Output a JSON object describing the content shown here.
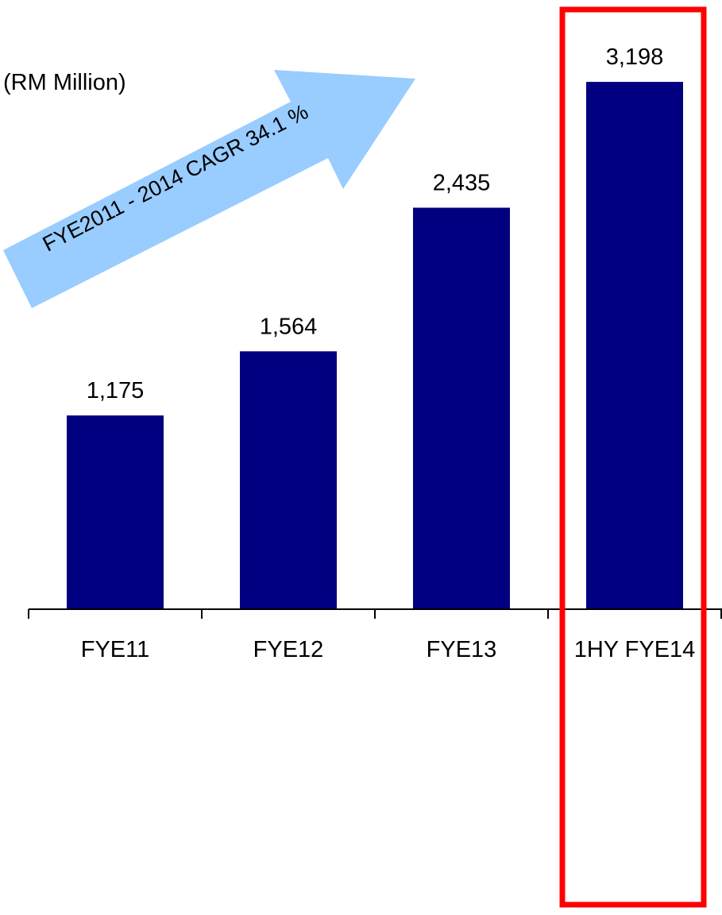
{
  "chart_data": {
    "type": "bar",
    "unit_label": "(RM Million)",
    "categories": [
      "FYE11",
      "FYE12",
      "FYE13",
      "1HY FYE14"
    ],
    "values": [
      1175,
      1564,
      2435,
      3198
    ],
    "value_labels": [
      "1,175",
      "1,564",
      "2,435",
      "3,198"
    ],
    "ylim": [
      0,
      3600
    ],
    "grid": false,
    "legend": "none",
    "highlight_category": "1HY FYE14",
    "annotation": "FYE2011 - 2014 CAGR  34.1 %",
    "colors": {
      "bar": "#000080",
      "highlight_box": "#ff0000",
      "arrow": "#99ccff",
      "text": "#000000"
    }
  }
}
